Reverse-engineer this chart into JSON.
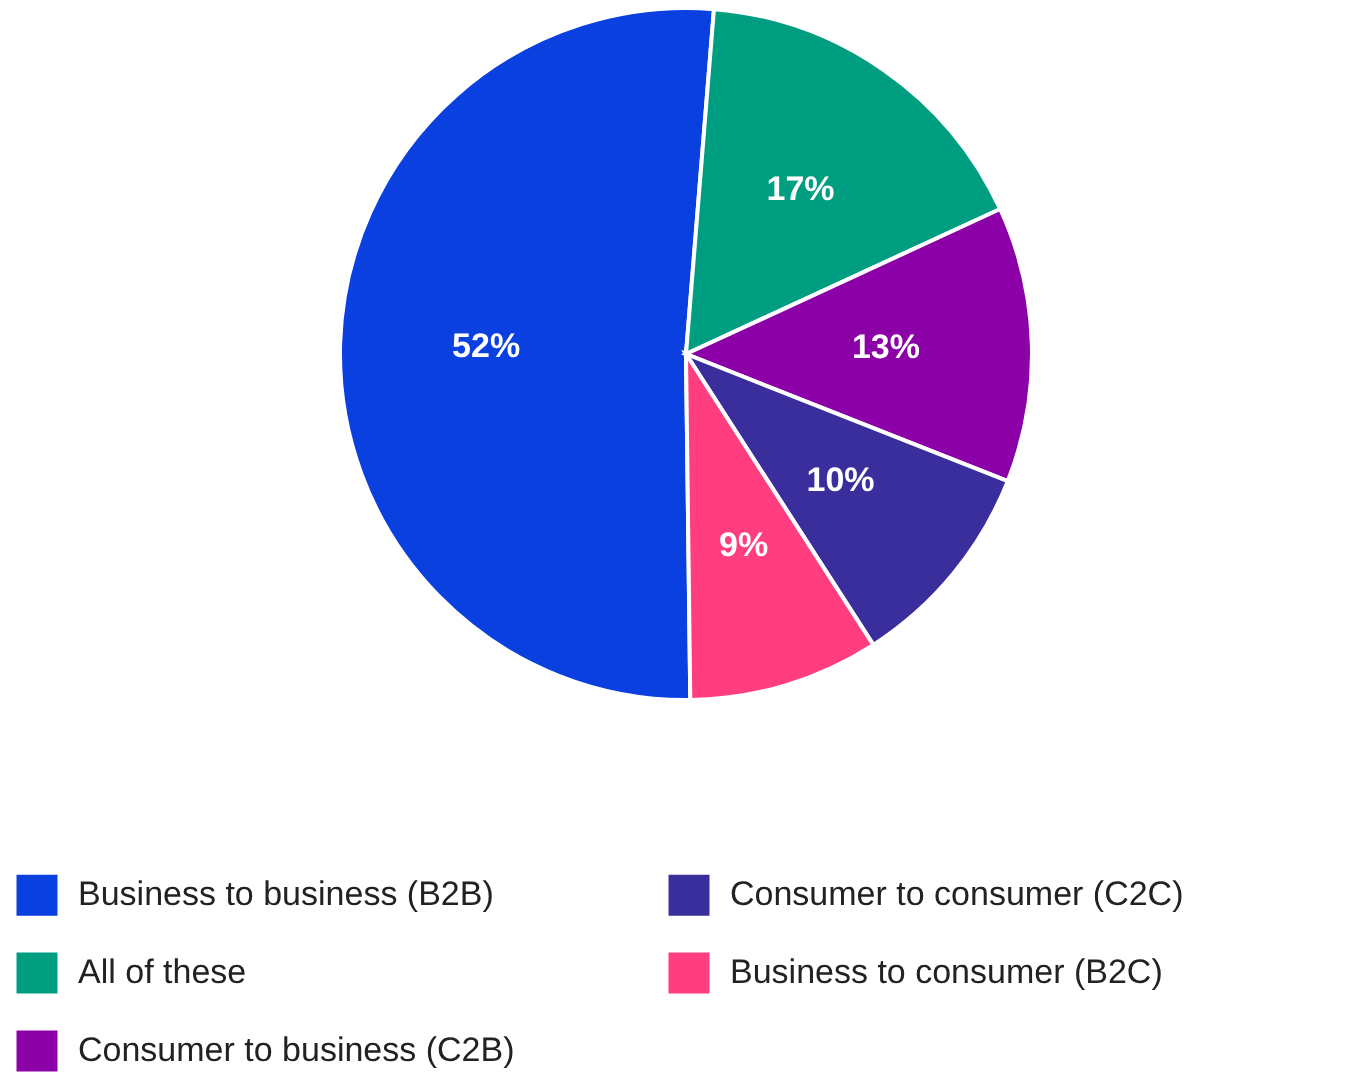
{
  "chart_data": {
    "type": "pie",
    "categories": [
      "Business to business (B2B)",
      "All of these",
      "Consumer to business (C2B)",
      "Consumer to consumer (C2C)",
      "Business to consumer (B2C)"
    ],
    "values": [
      52,
      17,
      13,
      10,
      9
    ],
    "colors": [
      "#0a3fe0",
      "#009e80",
      "#8c00a8",
      "#3a2e9c",
      "#ff3d7f"
    ],
    "value_labels": [
      "52%",
      "17%",
      "13%",
      "10%",
      "9%"
    ],
    "legend": "bottom"
  }
}
